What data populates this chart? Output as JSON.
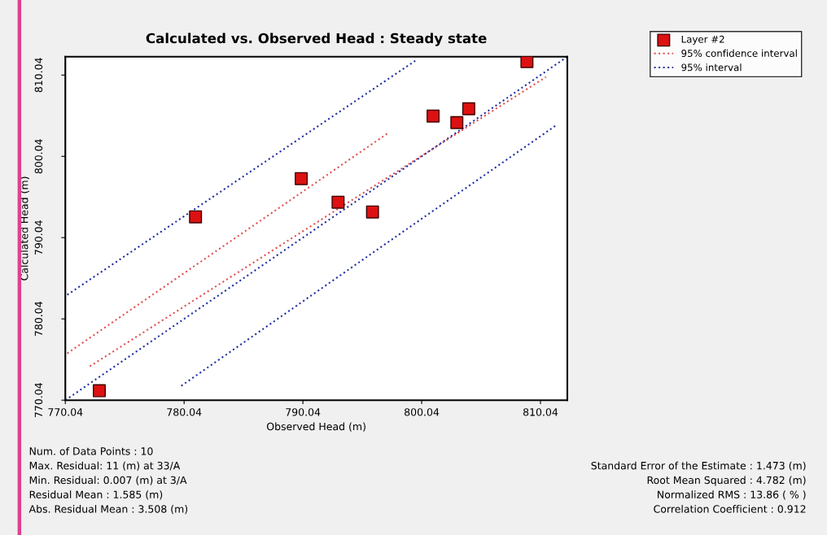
{
  "chart_data": {
    "type": "scatter",
    "title": "Calculated vs. Observed Head : Steady state",
    "xlabel": "Observed Head (m)",
    "ylabel": "Calculated Head (m)",
    "xlim": [
      770.04,
      812.3
    ],
    "ylim": [
      770.04,
      812.3
    ],
    "xticks": [
      770.04,
      780.04,
      790.04,
      800.04,
      810.04
    ],
    "yticks": [
      770.04,
      780.04,
      790.04,
      800.04,
      810.04
    ],
    "grid": false,
    "legend": "top right",
    "marker": "square",
    "series": [
      {
        "name": "Layer #2",
        "color": "#dd1111",
        "x": [
          772.9,
          781.0,
          789.9,
          793.0,
          795.9,
          801.0,
          803.0,
          804.0,
          808.9
        ],
        "values": [
          771.2,
          792.6,
          797.3,
          794.4,
          793.2,
          805.0,
          804.2,
          805.9,
          811.7
        ]
      },
      {
        "name": "95% confidence interval",
        "type": "line",
        "color": "#e05050",
        "line_style": "dotted",
        "marker": "none",
        "x": [
          770.2,
          797.3,
          null,
          772.1,
          810.5
        ],
        "values": [
          775.8,
          803.0,
          null,
          774.2,
          809.8
        ]
      },
      {
        "name": "95% interval",
        "type": "line",
        "color": "#2030a0",
        "line_style": "dotted",
        "marker": "none",
        "x": [
          770.2,
          799.5,
          null,
          779.8,
          811.3,
          null,
          770.04,
          812.3
        ],
        "values": [
          783.0,
          811.8,
          null,
          771.8,
          803.8,
          null,
          770.04,
          812.3
        ]
      }
    ],
    "annotations": [
      "Num. of Data Points : 10",
      "Max. Residual: 11 (m) at 33/A",
      "Min. Residual: 0.007 (m) at 3/A",
      "Residual Mean : 1.585 (m)",
      "Abs. Residual Mean : 3.508 (m)",
      "Standard Error of the Estimate : 1.473 (m)",
      "Root Mean Squared : 4.782 (m)",
      "Normalized RMS : 13.86 ( % )",
      "Correlation Coefficient : 0.912"
    ]
  }
}
